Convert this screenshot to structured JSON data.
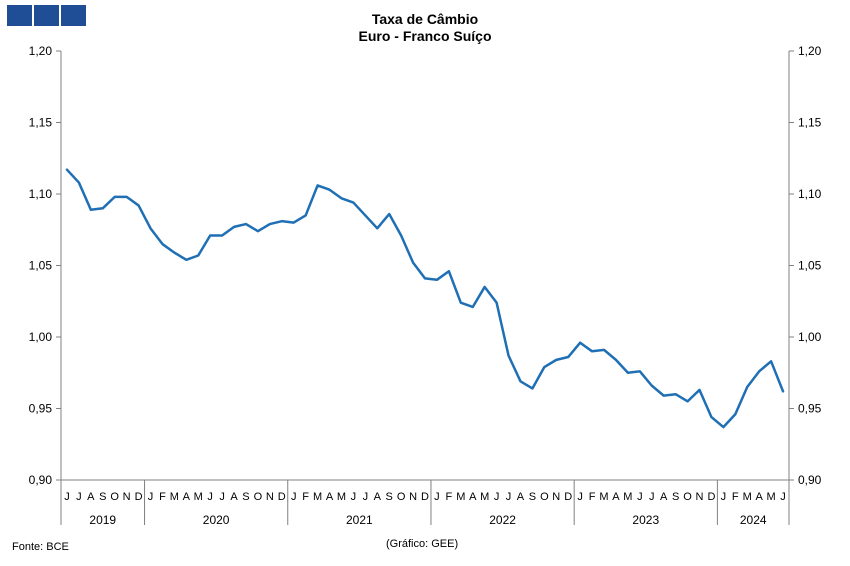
{
  "header": {
    "logo_icon": "bce-logo-icon",
    "logo_color": "#1f4e96"
  },
  "chart_data": {
    "type": "line",
    "title": "Taxa de Câmbio",
    "subtitle": "Euro - Franco Suíço",
    "ylim": [
      0.9,
      1.2
    ],
    "yticks": [
      "1,20",
      "1,15",
      "1,10",
      "1,05",
      "1,00",
      "0,95",
      "0,90"
    ],
    "yticks_right": [
      "1,20",
      "1,15",
      "1,10",
      "1,05",
      "1,00",
      "0,95",
      "0,90"
    ],
    "grid": false,
    "line_color": "#1f6fb5",
    "month_labels": [
      "J",
      "J",
      "A",
      "S",
      "O",
      "N",
      "D",
      "J",
      "F",
      "M",
      "A",
      "M",
      "J",
      "J",
      "A",
      "S",
      "O",
      "N",
      "D",
      "J",
      "F",
      "M",
      "A",
      "M",
      "J",
      "J",
      "A",
      "S",
      "O",
      "N",
      "D",
      "J",
      "F",
      "M",
      "A",
      "M",
      "J",
      "J",
      "A",
      "S",
      "O",
      "N",
      "D",
      "J",
      "F",
      "M",
      "A",
      "M",
      "J",
      "J",
      "A",
      "S",
      "O",
      "N",
      "D",
      "J",
      "F",
      "M",
      "A",
      "M",
      "J"
    ],
    "years": [
      {
        "label": "2019",
        "months": 7
      },
      {
        "label": "2020",
        "months": 12
      },
      {
        "label": "2021",
        "months": 12
      },
      {
        "label": "2022",
        "months": 12
      },
      {
        "label": "2023",
        "months": 12
      },
      {
        "label": "2024",
        "months": 6
      }
    ],
    "series": [
      {
        "values": [
          1.117,
          1.108,
          1.089,
          1.09,
          1.098,
          1.098,
          1.092,
          1.076,
          1.065,
          1.059,
          1.054,
          1.057,
          1.071,
          1.071,
          1.077,
          1.079,
          1.074,
          1.079,
          1.081,
          1.08,
          1.085,
          1.106,
          1.103,
          1.097,
          1.094,
          1.085,
          1.076,
          1.086,
          1.071,
          1.052,
          1.041,
          1.04,
          1.046,
          1.024,
          1.021,
          1.035,
          1.024,
          0.987,
          0.969,
          0.964,
          0.979,
          0.984,
          0.986,
          0.996,
          0.99,
          0.991,
          0.984,
          0.975,
          0.976,
          0.966,
          0.959,
          0.96,
          0.955,
          0.963,
          0.944,
          0.937,
          0.946,
          0.965,
          0.976,
          0.983,
          0.962
        ]
      }
    ]
  },
  "footer": {
    "source": "Fonte: BCE",
    "credit": "(Gráfico: GEE)"
  }
}
